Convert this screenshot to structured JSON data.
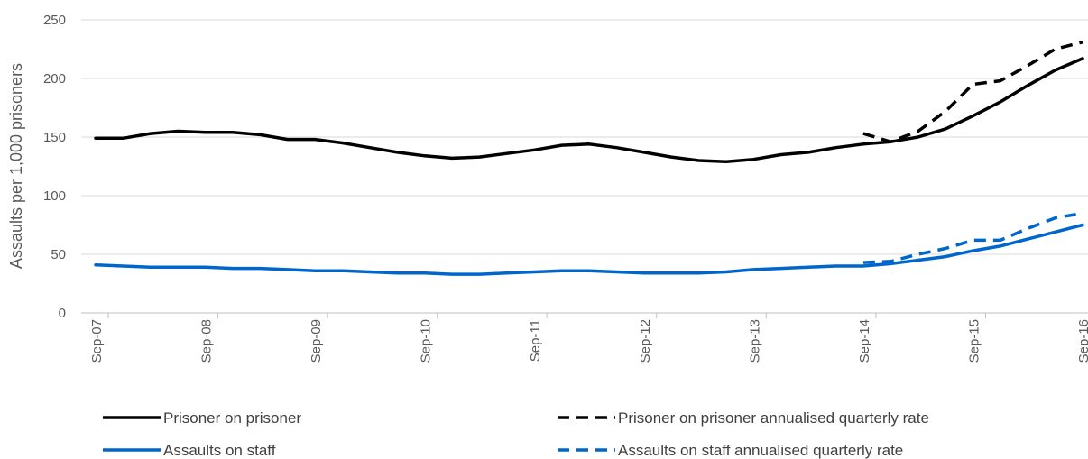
{
  "chart_data": {
    "type": "line",
    "ylabel": "Assaults per 1,000 prisoners",
    "ylim": [
      0,
      250
    ],
    "yticks": [
      0,
      50,
      100,
      150,
      200,
      250
    ],
    "grid": true,
    "legend_position": "bottom",
    "x_tick_labels": [
      "Sep-07",
      "Sep-08",
      "Sep-09",
      "Sep-10",
      "Sep-11",
      "Sep-12",
      "Sep-13",
      "Sep-14",
      "Sep-15",
      "Sep-16"
    ],
    "x_tick_positions": [
      0,
      4,
      8,
      12,
      16,
      20,
      24,
      28,
      32,
      36
    ],
    "colors": {
      "black": "#000000",
      "blue": "#0066CC"
    },
    "series": [
      {
        "name": "Prisoner on prisoner",
        "color": "#000000",
        "dashed": false,
        "x": [
          0,
          1,
          2,
          3,
          4,
          5,
          6,
          7,
          8,
          9,
          10,
          11,
          12,
          13,
          14,
          15,
          16,
          17,
          18,
          19,
          20,
          21,
          22,
          23,
          24,
          25,
          26,
          27,
          28,
          29,
          30,
          31,
          32,
          33,
          34,
          35,
          36
        ],
        "values": [
          149,
          149,
          153,
          155,
          154,
          154,
          152,
          148,
          148,
          145,
          141,
          137,
          134,
          132,
          133,
          136,
          139,
          143,
          144,
          141,
          137,
          133,
          130,
          129,
          131,
          135,
          137,
          141,
          144,
          146,
          150,
          157,
          168,
          180,
          194,
          207,
          217
        ]
      },
      {
        "name": "Prisoner on prisoner annualised quarterly rate",
        "color": "#000000",
        "dashed": true,
        "x": [
          28,
          29,
          30,
          31,
          32,
          33,
          34,
          35,
          36
        ],
        "values": [
          153,
          146,
          155,
          172,
          195,
          198,
          211,
          225,
          231
        ]
      },
      {
        "name": "Assaults on staff",
        "color": "#0066CC",
        "dashed": false,
        "x": [
          0,
          1,
          2,
          3,
          4,
          5,
          6,
          7,
          8,
          9,
          10,
          11,
          12,
          13,
          14,
          15,
          16,
          17,
          18,
          19,
          20,
          21,
          22,
          23,
          24,
          25,
          26,
          27,
          28,
          29,
          30,
          31,
          32,
          33,
          34,
          35,
          36
        ],
        "values": [
          41,
          40,
          39,
          39,
          39,
          38,
          38,
          37,
          36,
          36,
          35,
          34,
          34,
          33,
          33,
          34,
          35,
          36,
          36,
          35,
          34,
          34,
          34,
          35,
          37,
          38,
          39,
          40,
          40,
          42,
          45,
          48,
          53,
          57,
          63,
          69,
          75
        ]
      },
      {
        "name": "Assaults on staff annualised quarterly rate",
        "color": "#0066CC",
        "dashed": true,
        "x": [
          28,
          29,
          30,
          31,
          32,
          33,
          34,
          35,
          36
        ],
        "values": [
          43,
          44,
          50,
          55,
          62,
          62,
          72,
          81,
          85
        ]
      }
    ]
  }
}
